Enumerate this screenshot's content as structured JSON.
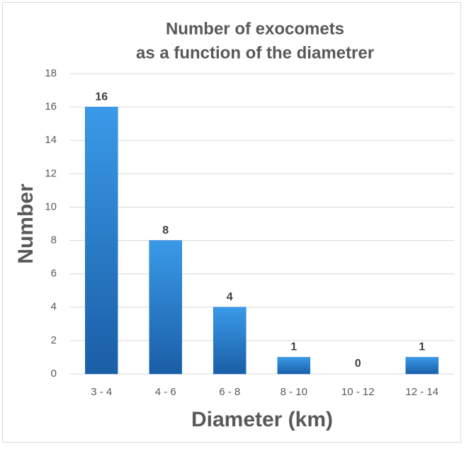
{
  "chart_data": {
    "type": "bar",
    "title": [
      "Number of exocomets",
      "as a function of the diametrer"
    ],
    "x_label": "Diameter (km)",
    "y_label": "Number",
    "categories": [
      "3 - 4",
      "4 - 6",
      "6 - 8",
      "8 - 10",
      "10 - 12",
      "12 - 14"
    ],
    "values": [
      16,
      8,
      4,
      1,
      0,
      1
    ],
    "color": "#1f78d1",
    "ylim": [
      0,
      18
    ],
    "yticks": [
      0,
      2,
      4,
      6,
      8,
      10,
      12,
      14,
      16,
      18
    ],
    "grid": true
  }
}
